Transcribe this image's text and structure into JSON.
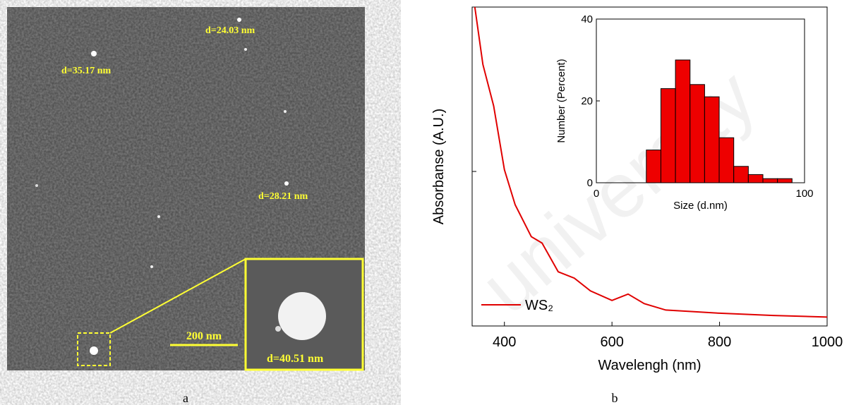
{
  "image_panel": {
    "labels": [
      "d=24.03 nm",
      "d=35.17 nm",
      "d=28.21 nm",
      "d=40.51 nm"
    ],
    "scale_bar": "200 nm",
    "caption": "a"
  },
  "watermark": "university",
  "chart_data": [
    {
      "type": "line",
      "caption": "b",
      "xlabel": "Wavelengh (nm)",
      "ylabel": "Absorbanse (A.U.)",
      "xlim": [
        340,
        1000
      ],
      "ylim": [
        0,
        1
      ],
      "xticks": [
        400,
        600,
        800,
        1000
      ],
      "x": [
        345,
        360,
        380,
        400,
        420,
        450,
        470,
        500,
        530,
        560,
        600,
        630,
        660,
        700,
        750,
        800,
        900,
        1000
      ],
      "series": [
        {
          "name": "WS₂",
          "color": "#e00000",
          "values": [
            1.0,
            0.82,
            0.69,
            0.49,
            0.38,
            0.28,
            0.26,
            0.17,
            0.15,
            0.11,
            0.08,
            0.1,
            0.07,
            0.05,
            0.045,
            0.04,
            0.033,
            0.028
          ]
        }
      ]
    },
    {
      "type": "histogram",
      "xlabel": "Size (d.nm)",
      "ylabel": "Number (Percent)",
      "xlim": [
        0,
        100
      ],
      "ylim": [
        0,
        40
      ],
      "xticks": [
        0,
        100
      ],
      "yticks": [
        0,
        20,
        40
      ],
      "color": "#ee0000",
      "bins": [
        24,
        31,
        38,
        45,
        52,
        59,
        66,
        73,
        80,
        87,
        94
      ],
      "values": [
        8,
        23,
        30,
        24,
        21,
        11,
        4,
        2,
        1,
        1
      ]
    }
  ]
}
